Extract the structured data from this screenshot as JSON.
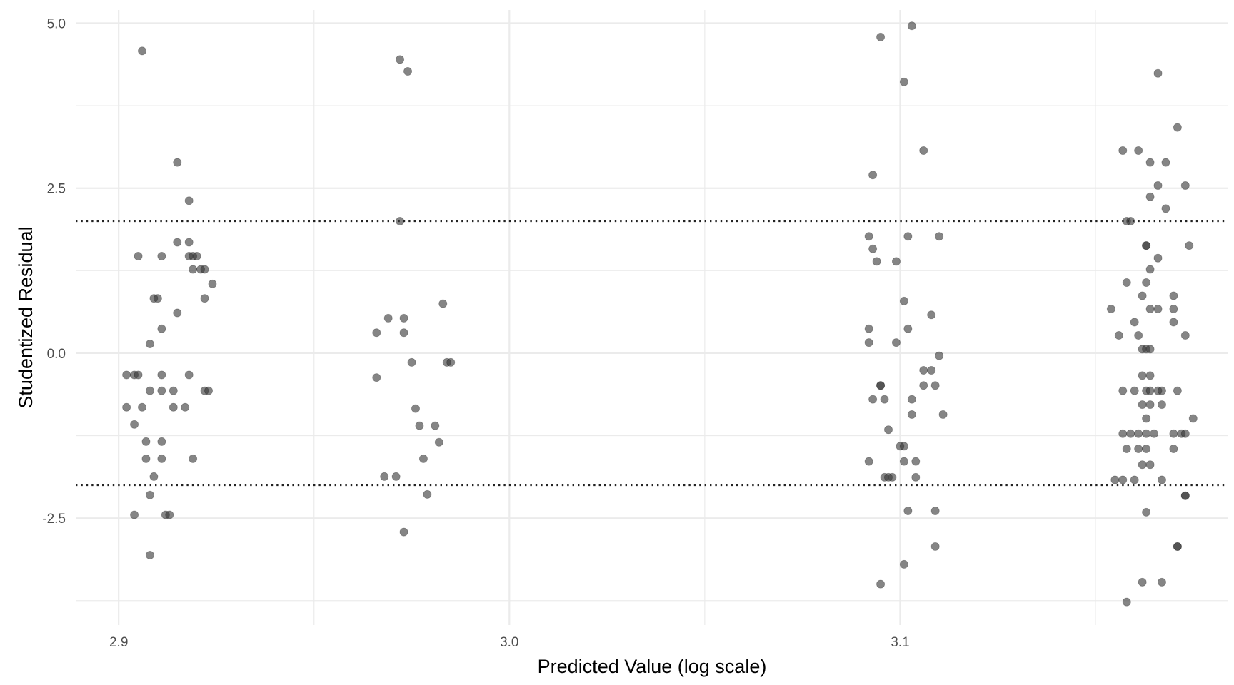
{
  "chart_data": {
    "type": "scatter",
    "title": "",
    "xlabel": "Predicted Value (log scale)",
    "ylabel": "Studentized Residual",
    "xlim": [
      2.889,
      3.184
    ],
    "ylim": [
      -4.12,
      5.2
    ],
    "x_ticks": [
      2.9,
      3.0,
      3.1
    ],
    "x_tick_labels": [
      "2.9",
      "3.0",
      "3.1"
    ],
    "y_ticks": [
      5.0,
      2.5,
      0.0,
      -2.5
    ],
    "y_tick_labels": [
      "5.0",
      "2.5",
      "0.0",
      "-2.5"
    ],
    "reference_lines": [
      2.0,
      -2.0
    ],
    "grid": true,
    "point_color": "#333333",
    "point_opacity": 0.6,
    "reference_line_color": "#222222",
    "grid_color": "#ebebeb",
    "points": [
      [
        2.906,
        4.58
      ],
      [
        2.915,
        2.89
      ],
      [
        2.918,
        2.31
      ],
      [
        2.915,
        1.68
      ],
      [
        2.918,
        1.68
      ],
      [
        2.905,
        1.47
      ],
      [
        2.911,
        1.47
      ],
      [
        2.918,
        1.47
      ],
      [
        2.919,
        1.47
      ],
      [
        2.92,
        1.47
      ],
      [
        2.919,
        1.27
      ],
      [
        2.921,
        1.27
      ],
      [
        2.922,
        1.27
      ],
      [
        2.924,
        1.05
      ],
      [
        2.909,
        0.83
      ],
      [
        2.91,
        0.83
      ],
      [
        2.922,
        0.83
      ],
      [
        2.915,
        0.61
      ],
      [
        2.911,
        0.37
      ],
      [
        2.908,
        0.14
      ],
      [
        2.902,
        -0.33
      ],
      [
        2.904,
        -0.33
      ],
      [
        2.905,
        -0.33
      ],
      [
        2.911,
        -0.33
      ],
      [
        2.918,
        -0.33
      ],
      [
        2.908,
        -0.57
      ],
      [
        2.911,
        -0.57
      ],
      [
        2.914,
        -0.57
      ],
      [
        2.922,
        -0.57
      ],
      [
        2.923,
        -0.57
      ],
      [
        2.902,
        -0.82
      ],
      [
        2.906,
        -0.82
      ],
      [
        2.914,
        -0.82
      ],
      [
        2.917,
        -0.82
      ],
      [
        2.904,
        -1.08
      ],
      [
        2.907,
        -1.34
      ],
      [
        2.911,
        -1.34
      ],
      [
        2.907,
        -1.6
      ],
      [
        2.911,
        -1.6
      ],
      [
        2.919,
        -1.6
      ],
      [
        2.909,
        -1.87
      ],
      [
        2.908,
        -2.15
      ],
      [
        2.904,
        -2.45
      ],
      [
        2.912,
        -2.45
      ],
      [
        2.913,
        -2.45
      ],
      [
        2.908,
        -3.06
      ],
      [
        2.972,
        4.45
      ],
      [
        2.974,
        4.27
      ],
      [
        2.972,
        2.0
      ],
      [
        2.983,
        0.75
      ],
      [
        2.969,
        0.53
      ],
      [
        2.973,
        0.53
      ],
      [
        2.966,
        0.31
      ],
      [
        2.973,
        0.31
      ],
      [
        2.975,
        -0.14
      ],
      [
        2.984,
        -0.14
      ],
      [
        2.985,
        -0.14
      ],
      [
        2.966,
        -0.37
      ],
      [
        2.976,
        -0.84
      ],
      [
        2.977,
        -1.1
      ],
      [
        2.981,
        -1.1
      ],
      [
        2.982,
        -1.35
      ],
      [
        2.978,
        -1.6
      ],
      [
        2.968,
        -1.87
      ],
      [
        2.971,
        -1.87
      ],
      [
        2.979,
        -2.14
      ],
      [
        2.973,
        -2.71
      ],
      [
        3.103,
        4.96
      ],
      [
        3.095,
        4.79
      ],
      [
        3.101,
        4.11
      ],
      [
        3.106,
        3.07
      ],
      [
        3.093,
        2.7
      ],
      [
        3.092,
        1.77
      ],
      [
        3.102,
        1.77
      ],
      [
        3.11,
        1.77
      ],
      [
        3.093,
        1.58
      ],
      [
        3.094,
        1.39
      ],
      [
        3.099,
        1.39
      ],
      [
        3.101,
        0.79
      ],
      [
        3.108,
        0.58
      ],
      [
        3.092,
        0.37
      ],
      [
        3.102,
        0.37
      ],
      [
        3.092,
        0.16
      ],
      [
        3.099,
        0.16
      ],
      [
        3.11,
        -0.04
      ],
      [
        3.106,
        -0.26
      ],
      [
        3.108,
        -0.26
      ],
      [
        3.095,
        -0.49
      ],
      [
        3.095,
        -0.49
      ],
      [
        3.106,
        -0.49
      ],
      [
        3.109,
        -0.49
      ],
      [
        3.093,
        -0.7
      ],
      [
        3.096,
        -0.7
      ],
      [
        3.103,
        -0.7
      ],
      [
        3.103,
        -0.93
      ],
      [
        3.111,
        -0.93
      ],
      [
        3.097,
        -1.16
      ],
      [
        3.1,
        -1.41
      ],
      [
        3.101,
        -1.41
      ],
      [
        3.092,
        -1.64
      ],
      [
        3.101,
        -1.64
      ],
      [
        3.104,
        -1.64
      ],
      [
        3.096,
        -1.88
      ],
      [
        3.097,
        -1.88
      ],
      [
        3.098,
        -1.88
      ],
      [
        3.104,
        -1.88
      ],
      [
        3.102,
        -2.39
      ],
      [
        3.109,
        -2.39
      ],
      [
        3.109,
        -2.93
      ],
      [
        3.101,
        -3.2
      ],
      [
        3.095,
        -3.5
      ],
      [
        3.166,
        4.24
      ],
      [
        3.171,
        3.42
      ],
      [
        3.157,
        3.07
      ],
      [
        3.161,
        3.07
      ],
      [
        3.164,
        2.89
      ],
      [
        3.168,
        2.89
      ],
      [
        3.166,
        2.54
      ],
      [
        3.173,
        2.54
      ],
      [
        3.164,
        2.37
      ],
      [
        3.168,
        2.19
      ],
      [
        3.158,
        2.0
      ],
      [
        3.159,
        2.0
      ],
      [
        3.163,
        1.63
      ],
      [
        3.163,
        1.63
      ],
      [
        3.174,
        1.63
      ],
      [
        3.166,
        1.44
      ],
      [
        3.164,
        1.27
      ],
      [
        3.158,
        1.07
      ],
      [
        3.163,
        1.07
      ],
      [
        3.162,
        0.87
      ],
      [
        3.17,
        0.87
      ],
      [
        3.164,
        0.67
      ],
      [
        3.166,
        0.67
      ],
      [
        3.17,
        0.67
      ],
      [
        3.154,
        0.67
      ],
      [
        3.16,
        0.47
      ],
      [
        3.17,
        0.47
      ],
      [
        3.156,
        0.27
      ],
      [
        3.161,
        0.27
      ],
      [
        3.173,
        0.27
      ],
      [
        3.162,
        0.06
      ],
      [
        3.163,
        0.06
      ],
      [
        3.164,
        0.06
      ],
      [
        3.162,
        -0.34
      ],
      [
        3.164,
        -0.34
      ],
      [
        3.157,
        -0.57
      ],
      [
        3.16,
        -0.57
      ],
      [
        3.163,
        -0.57
      ],
      [
        3.164,
        -0.57
      ],
      [
        3.166,
        -0.57
      ],
      [
        3.167,
        -0.57
      ],
      [
        3.171,
        -0.57
      ],
      [
        3.162,
        -0.78
      ],
      [
        3.164,
        -0.78
      ],
      [
        3.167,
        -0.78
      ],
      [
        3.163,
        -0.99
      ],
      [
        3.175,
        -0.99
      ],
      [
        3.157,
        -1.22
      ],
      [
        3.159,
        -1.22
      ],
      [
        3.161,
        -1.22
      ],
      [
        3.163,
        -1.22
      ],
      [
        3.165,
        -1.22
      ],
      [
        3.17,
        -1.22
      ],
      [
        3.172,
        -1.22
      ],
      [
        3.173,
        -1.22
      ],
      [
        3.158,
        -1.45
      ],
      [
        3.161,
        -1.45
      ],
      [
        3.163,
        -1.45
      ],
      [
        3.17,
        -1.45
      ],
      [
        3.162,
        -1.69
      ],
      [
        3.164,
        -1.69
      ],
      [
        3.155,
        -1.92
      ],
      [
        3.157,
        -1.92
      ],
      [
        3.16,
        -1.92
      ],
      [
        3.167,
        -1.92
      ],
      [
        3.173,
        -2.16
      ],
      [
        3.173,
        -2.16
      ],
      [
        3.163,
        -2.41
      ],
      [
        3.171,
        -2.93
      ],
      [
        3.171,
        -2.93
      ],
      [
        3.162,
        -3.47
      ],
      [
        3.167,
        -3.47
      ],
      [
        3.158,
        -3.77
      ]
    ]
  }
}
